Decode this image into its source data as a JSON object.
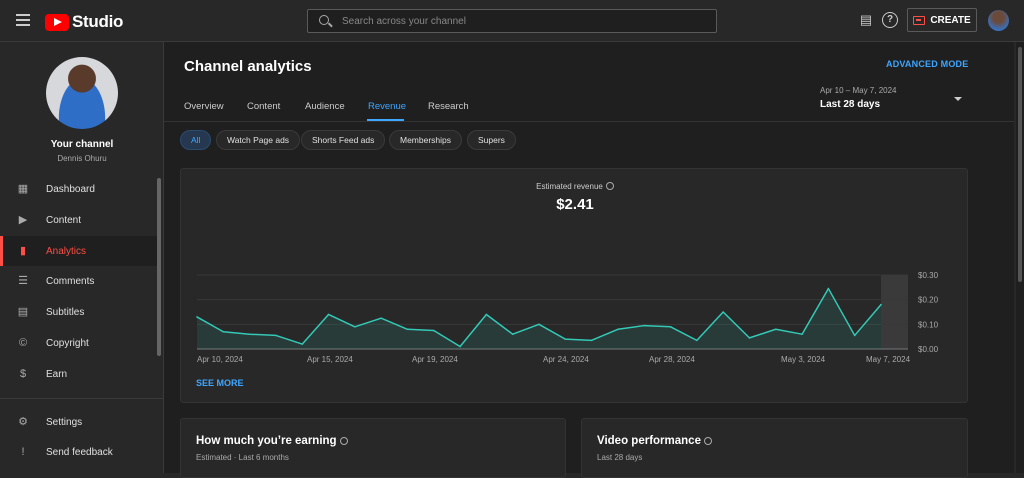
{
  "header": {
    "logo_text": "Studio",
    "search_placeholder": "Search across your channel",
    "create_label": "CREATE",
    "icons": [
      "menu-icon",
      "youtube-logo-icon",
      "search-icon",
      "feedback-icon",
      "help-icon",
      "create-video-icon",
      "account-avatar"
    ]
  },
  "sidebar": {
    "channel_title": "Your channel",
    "channel_name": "Dennis Ohuru",
    "items": [
      {
        "label": "Dashboard",
        "icon": "dashboard-icon",
        "glyph": "▦"
      },
      {
        "label": "Content",
        "icon": "content-icon",
        "glyph": "▶"
      },
      {
        "label": "Analytics",
        "icon": "analytics-icon",
        "glyph": "▮"
      },
      {
        "label": "Comments",
        "icon": "comments-icon",
        "glyph": "☰"
      },
      {
        "label": "Subtitles",
        "icon": "subtitles-icon",
        "glyph": "▤"
      },
      {
        "label": "Copyright",
        "icon": "copyright-icon",
        "glyph": "©"
      },
      {
        "label": "Earn",
        "icon": "earn-icon",
        "glyph": "$"
      },
      {
        "label": "Settings",
        "icon": "settings-icon",
        "glyph": "⚙"
      },
      {
        "label": "Send feedback",
        "icon": "send-feedback-icon",
        "glyph": "!"
      }
    ],
    "active_item": "Analytics"
  },
  "main": {
    "title": "Channel analytics",
    "advanced_mode": "ADVANCED MODE",
    "tabs": [
      "Overview",
      "Content",
      "Audience",
      "Revenue",
      "Research"
    ],
    "active_tab": "Revenue",
    "date_range": "Apr 10 – May 7, 2024",
    "date_label": "Last 28 days",
    "chips": [
      "All",
      "Watch Page ads",
      "Shorts Feed ads",
      "Memberships",
      "Supers"
    ],
    "active_chip": "All",
    "metric_label": "Estimated revenue",
    "metric_value": "$2.41",
    "see_more": "SEE MORE"
  },
  "cards": [
    {
      "title": "How much you’re earning",
      "subtitle": "Estimated · Last 6 months"
    },
    {
      "title": "Video performance",
      "subtitle": "Last 28 days"
    }
  ],
  "colors": {
    "accent": "#3ea6ff",
    "brand": "#ff0000",
    "active_nav": "#ff4e45",
    "line": "#33c9b6"
  },
  "chart_data": {
    "type": "area",
    "x_tick_labels": [
      "Apr 10, 2024",
      "Apr 15, 2024",
      "Apr 19, 2024",
      "Apr 24, 2024",
      "Apr 28, 2024",
      "May 3, 2024",
      "May 7, 2024"
    ],
    "y_tick_labels": [
      "$0.00",
      "$0.10",
      "$0.20",
      "$0.30"
    ],
    "ylim": [
      0,
      0.3
    ],
    "values": [
      0.13,
      0.07,
      0.06,
      0.055,
      0.02,
      0.14,
      0.09,
      0.125,
      0.08,
      0.075,
      0.01,
      0.14,
      0.06,
      0.1,
      0.04,
      0.035,
      0.08,
      0.095,
      0.09,
      0.035,
      0.15,
      0.045,
      0.08,
      0.06,
      0.245,
      0.055,
      0.18
    ],
    "grid": true,
    "highlight_last": true
  }
}
